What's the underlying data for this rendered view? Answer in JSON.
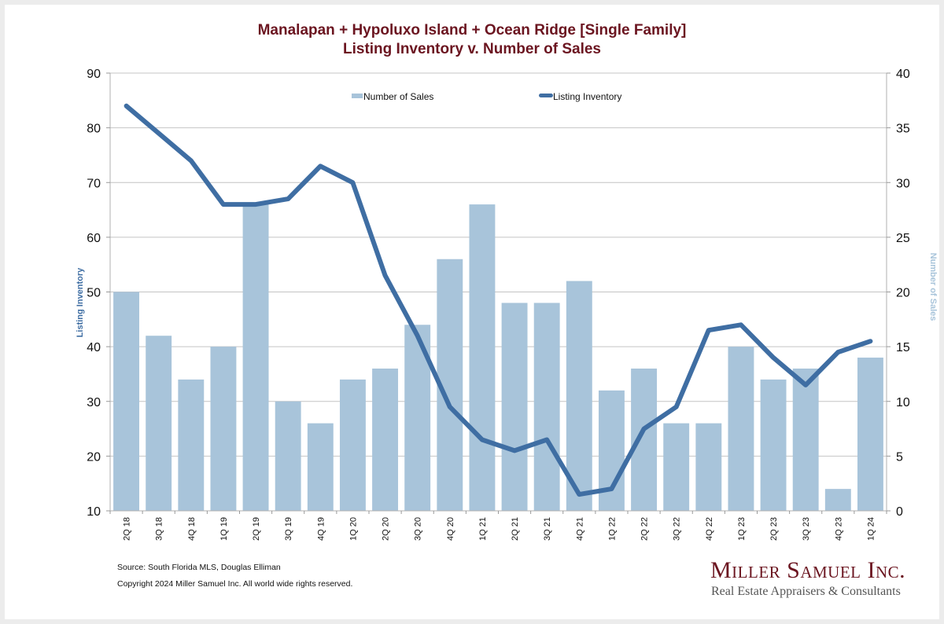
{
  "header": {
    "title_line1": "Manalapan + Hypoluxo Island + Ocean Ridge [Single Family]",
    "title_line2": "Listing Inventory v. Number of Sales"
  },
  "chart_data": {
    "type": "bar+line",
    "title": "Manalapan + Hypoluxo Island + Ocean Ridge [Single Family] Listing Inventory v. Number of Sales",
    "categories": [
      "2Q 18",
      "3Q 18",
      "4Q 18",
      "1Q 19",
      "2Q 19",
      "3Q 19",
      "4Q 19",
      "1Q 20",
      "2Q 20",
      "3Q 20",
      "4Q 20",
      "1Q 21",
      "2Q 21",
      "3Q 21",
      "4Q 21",
      "1Q 22",
      "2Q 22",
      "3Q 22",
      "4Q 22",
      "1Q 23",
      "2Q 23",
      "3Q 23",
      "4Q 23",
      "1Q 24"
    ],
    "series": [
      {
        "name": "Number of Sales",
        "type": "bar",
        "axis": "right",
        "color": "#a8c4da",
        "values": [
          20,
          16,
          12,
          15,
          28,
          10,
          8,
          12,
          13,
          17,
          23,
          28,
          19,
          19,
          21,
          11,
          13,
          8,
          8,
          15,
          12,
          13,
          2,
          14
        ]
      },
      {
        "name": "Listing Inventory",
        "type": "line",
        "axis": "left",
        "color": "#3f6ea3",
        "values": [
          84,
          79,
          74,
          66,
          66,
          67,
          73,
          70,
          53,
          42,
          29,
          23,
          21,
          23,
          13,
          14,
          25,
          29,
          43,
          44,
          38,
          33,
          39,
          41
        ]
      }
    ],
    "y_left": {
      "label": "Listing Inventory",
      "ylim": [
        10,
        90
      ],
      "ticks": [
        "10",
        "20",
        "30",
        "40",
        "50",
        "60",
        "70",
        "80",
        "90"
      ],
      "label_color": "#3f6ea3"
    },
    "y_right": {
      "label": "Number of Sales",
      "ylim": [
        0,
        40
      ],
      "ticks": [
        "0",
        "5",
        "10",
        "15",
        "20",
        "25",
        "30",
        "35",
        "40"
      ],
      "label_color": "#a8c4da"
    },
    "grid": true,
    "legend": {
      "placement": "top-center",
      "entries": [
        "Number of Sales",
        "Listing Inventory"
      ]
    }
  },
  "footer": {
    "source": "Source: South Florida MLS, Douglas Elliman",
    "copyright": "Copyright 2024 Miller Samuel Inc.  All world wide rights reserved."
  },
  "logo": {
    "name": "Miller Samuel Inc.",
    "tagline": "Real Estate Appraisers & Consultants"
  }
}
